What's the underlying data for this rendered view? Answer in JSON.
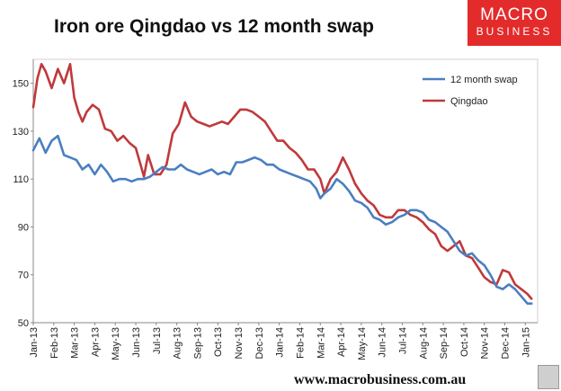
{
  "title": "Iron ore Qingdao vs 12 month swap",
  "logo": {
    "line1": "MACRO",
    "line2": "BUSINESS"
  },
  "footer": {
    "url": "www.macrobusiness.com.au"
  },
  "icons": {
    "logo_corner": "wolf-icon"
  },
  "colors": {
    "swap": "#4a7fc1",
    "qingdao": "#c0393b",
    "logo_bg": "#e32b2b"
  },
  "chart_data": {
    "type": "line",
    "title": "Iron ore Qingdao vs 12 month swap",
    "xlabel": "",
    "ylabel": "",
    "ylim": [
      50,
      160
    ],
    "yticks": [
      50,
      70,
      90,
      110,
      130,
      150
    ],
    "xlim": [
      0,
      24.6
    ],
    "xtick_labels": [
      "Jan-13",
      "Feb-13",
      "Mar-13",
      "Apr-13",
      "May-13",
      "Jun-13",
      "Jul-13",
      "Aug-13",
      "Sep-13",
      "Oct-13",
      "Nov-13",
      "Dec-13",
      "Jan-14",
      "Feb-14",
      "Mar-14",
      "Apr-14",
      "May-14",
      "Jun-14",
      "Jul-14",
      "Aug-14",
      "Sep-14",
      "Oct-14",
      "Nov-14",
      "Dec-14",
      "Jan-15"
    ],
    "grid": false,
    "legend_position": "top-right",
    "series": [
      {
        "name": "12 month swap",
        "color": "#4a7fc1",
        "x": [
          0,
          0.3,
          0.6,
          0.9,
          1.2,
          1.5,
          1.8,
          2.1,
          2.4,
          2.7,
          3.0,
          3.3,
          3.6,
          3.9,
          4.2,
          4.5,
          4.8,
          5.1,
          5.4,
          5.7,
          6.0,
          6.3,
          6.6,
          6.9,
          7.2,
          7.5,
          7.8,
          8.1,
          8.4,
          8.7,
          9.0,
          9.3,
          9.6,
          9.9,
          10.2,
          10.5,
          10.8,
          11.1,
          11.4,
          11.7,
          12.0,
          12.3,
          12.6,
          12.9,
          13.2,
          13.5,
          13.8,
          14.0,
          14.2,
          14.5,
          14.8,
          15.1,
          15.4,
          15.7,
          16.0,
          16.3,
          16.6,
          16.9,
          17.2,
          17.5,
          17.8,
          18.1,
          18.4,
          18.7,
          19.0,
          19.3,
          19.6,
          19.9,
          20.2,
          20.5,
          20.8,
          21.1,
          21.4,
          21.7,
          22.0,
          22.3,
          22.6,
          22.9,
          23.2,
          23.5,
          23.8,
          24.1,
          24.3
        ],
        "values": [
          122,
          127,
          121,
          126,
          128,
          120,
          119,
          118,
          114,
          116,
          112,
          116,
          113,
          109,
          110,
          110,
          109,
          110,
          110,
          111,
          113,
          115,
          114,
          114,
          116,
          114,
          113,
          112,
          113,
          114,
          112,
          113,
          112,
          117,
          117,
          118,
          119,
          118,
          116,
          116,
          114,
          113,
          112,
          111,
          110,
          109,
          106,
          102,
          104,
          106,
          110,
          108,
          105,
          101,
          100,
          98,
          94,
          93,
          91,
          92,
          94,
          95,
          97,
          97,
          96,
          93,
          92,
          90,
          88,
          84,
          80,
          78,
          79,
          76,
          74,
          70,
          65,
          64,
          66,
          64,
          61,
          58,
          58
        ]
      },
      {
        "name": "Qingdao",
        "color": "#c0393b",
        "x": [
          0,
          0.2,
          0.4,
          0.6,
          0.9,
          1.2,
          1.5,
          1.8,
          2.0,
          2.2,
          2.4,
          2.6,
          2.9,
          3.2,
          3.5,
          3.8,
          4.1,
          4.4,
          4.7,
          5.0,
          5.2,
          5.4,
          5.6,
          5.9,
          6.2,
          6.5,
          6.8,
          7.1,
          7.4,
          7.7,
          8.0,
          8.3,
          8.6,
          8.9,
          9.2,
          9.5,
          9.8,
          10.1,
          10.4,
          10.7,
          11.0,
          11.3,
          11.6,
          11.9,
          12.2,
          12.5,
          12.8,
          13.1,
          13.4,
          13.7,
          14.0,
          14.2,
          14.5,
          14.8,
          15.1,
          15.4,
          15.7,
          16.0,
          16.3,
          16.6,
          16.9,
          17.2,
          17.5,
          17.8,
          18.1,
          18.4,
          18.7,
          19.0,
          19.3,
          19.6,
          19.9,
          20.2,
          20.5,
          20.8,
          21.1,
          21.4,
          21.7,
          22.0,
          22.3,
          22.6,
          22.9,
          23.2,
          23.5,
          23.8,
          24.1,
          24.3
        ],
        "values": [
          140,
          152,
          158,
          155,
          148,
          156,
          150,
          158,
          144,
          138,
          134,
          138,
          141,
          139,
          131,
          130,
          126,
          128,
          125,
          123,
          117,
          111,
          120,
          112,
          112,
          116,
          129,
          133,
          142,
          136,
          134,
          133,
          132,
          133,
          134,
          133,
          136,
          139,
          139,
          138,
          136,
          134,
          130,
          126,
          126,
          123,
          121,
          118,
          114,
          114,
          110,
          104,
          110,
          113,
          119,
          114,
          108,
          104,
          101,
          99,
          95,
          94,
          94,
          97,
          97,
          95,
          94,
          92,
          89,
          87,
          82,
          80,
          82,
          84,
          78,
          77,
          73,
          69,
          67,
          66,
          72,
          71,
          66,
          64,
          62,
          60
        ]
      }
    ]
  }
}
